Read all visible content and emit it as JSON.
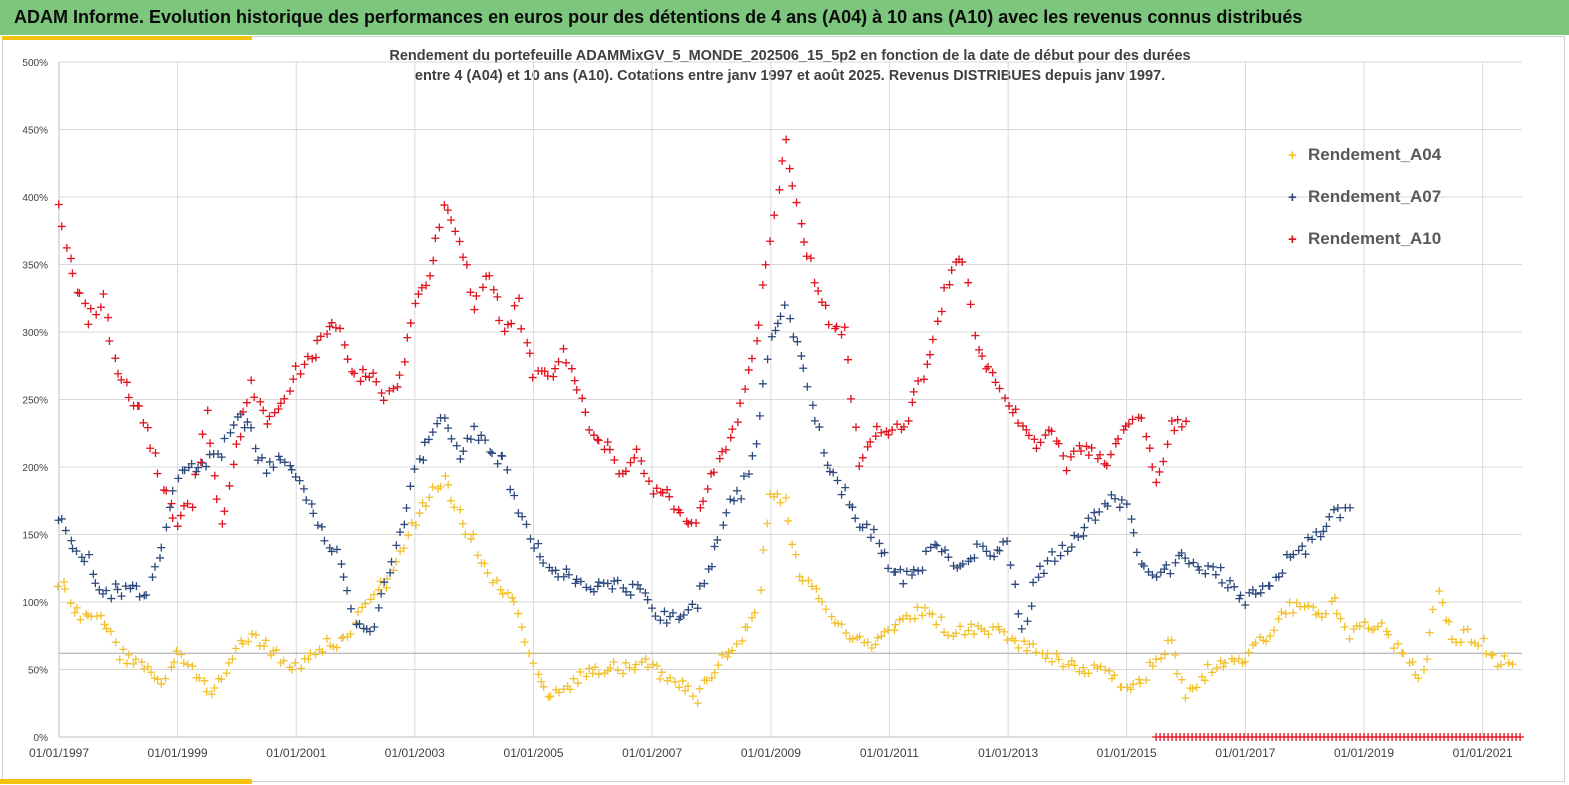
{
  "banner": {
    "title": "ADAM Informe. Evolution historique des performances en euros pour des détentions de 4 ans (A04) à 10 ans (A10) avec les revenus connus distribués"
  },
  "chart_data": {
    "type": "scatter",
    "title_line1": "Rendement du portefeuille ADAMMixGV_5_MONDE_202506_15_5p2 en fonction de la date de début pour des durées",
    "title_line2": "entre 4 (A04) et 10 ans (A10). Cotations entre janv 1997 et août 2025. Revenus DISTRIBUES depuis janv 1997.",
    "xlabel": "",
    "ylabel": "",
    "x_range": [
      "01/01/1997",
      "31/08/2021"
    ],
    "x_ticks": [
      "01/01/1997",
      "01/01/1999",
      "01/01/2001",
      "01/01/2003",
      "01/01/2005",
      "01/01/2007",
      "01/01/2009",
      "01/01/2011",
      "01/01/2013",
      "01/01/2015",
      "01/01/2017",
      "01/01/2019",
      "01/01/2021"
    ],
    "ylim": [
      0,
      500
    ],
    "y_ticks": [
      "0%",
      "50%",
      "100%",
      "150%",
      "200%",
      "250%",
      "300%",
      "350%",
      "400%",
      "450%",
      "500%"
    ],
    "grid": true,
    "reference_line": 62,
    "legend_placement": "top-right",
    "series": [
      {
        "name": "Rendement_A04",
        "color": "#f2c12e",
        "points": [
          [
            "01/01/1997",
            115
          ],
          [
            "01/04/1997",
            95
          ],
          [
            "01/07/1997",
            85
          ],
          [
            "01/10/1997",
            88
          ],
          [
            "01/01/1998",
            62
          ],
          [
            "01/04/1998",
            55
          ],
          [
            "01/07/1998",
            52
          ],
          [
            "01/10/1998",
            40
          ],
          [
            "01/01/1999",
            60
          ],
          [
            "01/04/1999",
            48
          ],
          [
            "01/07/1999",
            35
          ],
          [
            "01/10/1999",
            42
          ],
          [
            "01/01/2000",
            65
          ],
          [
            "01/04/2000",
            72
          ],
          [
            "01/07/2000",
            68
          ],
          [
            "01/10/2000",
            58
          ],
          [
            "01/01/2001",
            50
          ],
          [
            "01/04/2001",
            60
          ],
          [
            "01/07/2001",
            70
          ],
          [
            "01/10/2001",
            68
          ],
          [
            "01/01/2002",
            85
          ],
          [
            "01/04/2002",
            100
          ],
          [
            "01/07/2002",
            115
          ],
          [
            "01/10/2002",
            135
          ],
          [
            "01/01/2003",
            160
          ],
          [
            "01/04/2003",
            180
          ],
          [
            "01/07/2003",
            190
          ],
          [
            "01/10/2003",
            165
          ],
          [
            "01/01/2004",
            145
          ],
          [
            "01/04/2004",
            120
          ],
          [
            "01/07/2004",
            105
          ],
          [
            "01/10/2004",
            95
          ],
          [
            "01/01/2005",
            55
          ],
          [
            "01/04/2005",
            25
          ],
          [
            "01/07/2005",
            35
          ],
          [
            "01/10/2005",
            42
          ],
          [
            "01/01/2006",
            48
          ],
          [
            "01/04/2006",
            50
          ],
          [
            "01/07/2006",
            52
          ],
          [
            "01/10/2006",
            56
          ],
          [
            "01/01/2007",
            50
          ],
          [
            "01/04/2007",
            45
          ],
          [
            "01/07/2007",
            38
          ],
          [
            "01/10/2007",
            30
          ],
          [
            "01/01/2008",
            45
          ],
          [
            "01/04/2008",
            60
          ],
          [
            "01/07/2008",
            75
          ],
          [
            "01/10/2008",
            90
          ],
          [
            "01/01/2009",
            180
          ],
          [
            "01/04/2009",
            175
          ],
          [
            "01/07/2009",
            120
          ],
          [
            "01/10/2009",
            105
          ],
          [
            "01/01/2010",
            90
          ],
          [
            "01/04/2010",
            78
          ],
          [
            "01/07/2010",
            70
          ],
          [
            "01/10/2010",
            68
          ],
          [
            "01/01/2011",
            78
          ],
          [
            "01/04/2011",
            88
          ],
          [
            "01/07/2011",
            92
          ],
          [
            "01/10/2011",
            90
          ],
          [
            "01/01/2012",
            80
          ],
          [
            "01/04/2012",
            78
          ],
          [
            "01/07/2012",
            82
          ],
          [
            "01/10/2012",
            80
          ],
          [
            "01/01/2013",
            75
          ],
          [
            "01/04/2013",
            68
          ],
          [
            "01/07/2013",
            65
          ],
          [
            "01/10/2013",
            60
          ],
          [
            "01/01/2014",
            55
          ],
          [
            "01/04/2014",
            52
          ],
          [
            "01/07/2014",
            50
          ],
          [
            "01/10/2014",
            45
          ],
          [
            "01/01/2015",
            38
          ],
          [
            "01/04/2015",
            42
          ],
          [
            "01/07/2015",
            60
          ],
          [
            "01/10/2015",
            70
          ],
          [
            "01/01/2016",
            30
          ],
          [
            "01/04/2016",
            45
          ],
          [
            "01/07/2016",
            52
          ],
          [
            "01/10/2016",
            55
          ],
          [
            "01/01/2017",
            60
          ],
          [
            "01/04/2017",
            70
          ],
          [
            "01/07/2017",
            80
          ],
          [
            "01/10/2017",
            95
          ],
          [
            "01/01/2018",
            95
          ],
          [
            "01/04/2018",
            90
          ],
          [
            "01/07/2018",
            100
          ],
          [
            "01/10/2018",
            75
          ],
          [
            "01/01/2019",
            80
          ],
          [
            "01/04/2019",
            85
          ],
          [
            "01/07/2019",
            68
          ],
          [
            "01/10/2019",
            55
          ],
          [
            "01/01/2020",
            45
          ],
          [
            "01/04/2020",
            110
          ],
          [
            "01/07/2020",
            72
          ],
          [
            "01/10/2020",
            75
          ],
          [
            "01/01/2021",
            70
          ],
          [
            "01/04/2021",
            55
          ],
          [
            "01/07/2021",
            55
          ]
        ]
      },
      {
        "name": "Rendement_A07",
        "color": "#2e4a7d",
        "points": [
          [
            "01/01/1997",
            165
          ],
          [
            "01/04/1997",
            140
          ],
          [
            "01/07/1997",
            130
          ],
          [
            "01/10/1997",
            105
          ],
          [
            "01/01/1998",
            110
          ],
          [
            "01/04/1998",
            108
          ],
          [
            "01/07/1998",
            105
          ],
          [
            "01/10/1998",
            140
          ],
          [
            "01/01/1999",
            195
          ],
          [
            "01/04/1999",
            200
          ],
          [
            "01/07/1999",
            205
          ],
          [
            "01/10/1999",
            210
          ],
          [
            "01/01/2000",
            240
          ],
          [
            "01/04/2000",
            225
          ],
          [
            "01/07/2000",
            195
          ],
          [
            "01/10/2000",
            210
          ],
          [
            "01/01/2001",
            195
          ],
          [
            "01/04/2001",
            170
          ],
          [
            "01/07/2001",
            150
          ],
          [
            "01/10/2001",
            130
          ],
          [
            "01/01/2002",
            85
          ],
          [
            "01/04/2002",
            75
          ],
          [
            "01/07/2002",
            110
          ],
          [
            "01/10/2002",
            150
          ],
          [
            "01/01/2003",
            195
          ],
          [
            "01/04/2003",
            220
          ],
          [
            "01/07/2003",
            235
          ],
          [
            "01/10/2003",
            210
          ],
          [
            "01/01/2004",
            230
          ],
          [
            "01/04/2004",
            210
          ],
          [
            "01/07/2004",
            205
          ],
          [
            "01/10/2004",
            170
          ],
          [
            "01/01/2005",
            145
          ],
          [
            "01/04/2005",
            130
          ],
          [
            "01/07/2005",
            120
          ],
          [
            "01/10/2005",
            118
          ],
          [
            "01/01/2006",
            112
          ],
          [
            "01/04/2006",
            110
          ],
          [
            "01/07/2006",
            112
          ],
          [
            "01/10/2006",
            108
          ],
          [
            "01/01/2007",
            95
          ],
          [
            "01/04/2007",
            88
          ],
          [
            "01/07/2007",
            92
          ],
          [
            "01/10/2007",
            100
          ],
          [
            "01/01/2008",
            130
          ],
          [
            "01/04/2008",
            170
          ],
          [
            "01/07/2008",
            180
          ],
          [
            "01/10/2008",
            220
          ],
          [
            "01/01/2009",
            300
          ],
          [
            "01/04/2009",
            320
          ],
          [
            "01/07/2009",
            280
          ],
          [
            "01/10/2009",
            235
          ],
          [
            "01/01/2010",
            195
          ],
          [
            "01/04/2010",
            180
          ],
          [
            "01/07/2010",
            160
          ],
          [
            "01/10/2010",
            150
          ],
          [
            "01/01/2011",
            130
          ],
          [
            "01/04/2011",
            118
          ],
          [
            "01/07/2011",
            120
          ],
          [
            "01/10/2011",
            145
          ],
          [
            "01/01/2012",
            130
          ],
          [
            "01/04/2012",
            125
          ],
          [
            "01/07/2012",
            140
          ],
          [
            "01/10/2012",
            135
          ],
          [
            "01/01/2013",
            145
          ],
          [
            "01/04/2013",
            80
          ],
          [
            "01/07/2013",
            120
          ],
          [
            "01/10/2013",
            132
          ],
          [
            "01/01/2014",
            140
          ],
          [
            "01/04/2014",
            150
          ],
          [
            "01/07/2014",
            165
          ],
          [
            "01/10/2014",
            178
          ],
          [
            "01/01/2015",
            170
          ],
          [
            "01/04/2015",
            130
          ],
          [
            "01/07/2015",
            120
          ],
          [
            "01/10/2015",
            125
          ],
          [
            "01/01/2016",
            135
          ],
          [
            "01/04/2016",
            120
          ],
          [
            "01/07/2016",
            125
          ],
          [
            "01/10/2016",
            112
          ],
          [
            "01/01/2017",
            100
          ],
          [
            "01/04/2017",
            108
          ],
          [
            "01/07/2017",
            115
          ],
          [
            "01/10/2017",
            135
          ],
          [
            "01/01/2018",
            140
          ],
          [
            "01/04/2018",
            150
          ],
          [
            "01/07/2018",
            165
          ],
          [
            "01/10/2018",
            170
          ]
        ]
      },
      {
        "name": "Rendement_A10",
        "color": "#e0131e",
        "points": [
          [
            "01/01/1997",
            395
          ],
          [
            "01/04/1997",
            340
          ],
          [
            "01/07/1997",
            310
          ],
          [
            "01/10/1997",
            325
          ],
          [
            "01/01/1998",
            270
          ],
          [
            "01/04/1998",
            250
          ],
          [
            "01/07/1998",
            230
          ],
          [
            "01/10/1998",
            185
          ],
          [
            "01/01/1999",
            160
          ],
          [
            "01/04/1999",
            175
          ],
          [
            "01/07/1999",
            240
          ],
          [
            "01/10/1999",
            155
          ],
          [
            "01/01/2000",
            215
          ],
          [
            "01/04/2000",
            260
          ],
          [
            "01/07/2000",
            235
          ],
          [
            "01/10/2000",
            245
          ],
          [
            "01/01/2001",
            270
          ],
          [
            "01/04/2001",
            280
          ],
          [
            "01/07/2001",
            300
          ],
          [
            "01/10/2001",
            305
          ],
          [
            "01/01/2002",
            265
          ],
          [
            "01/04/2002",
            270
          ],
          [
            "01/07/2002",
            250
          ],
          [
            "01/10/2002",
            265
          ],
          [
            "01/01/2003",
            320
          ],
          [
            "01/04/2003",
            340
          ],
          [
            "01/07/2003",
            395
          ],
          [
            "01/10/2003",
            370
          ],
          [
            "01/01/2004",
            320
          ],
          [
            "01/04/2004",
            345
          ],
          [
            "01/07/2004",
            300
          ],
          [
            "01/10/2004",
            320
          ],
          [
            "01/01/2005",
            270
          ],
          [
            "01/04/2005",
            265
          ],
          [
            "01/07/2005",
            285
          ],
          [
            "01/10/2005",
            255
          ],
          [
            "01/01/2006",
            225
          ],
          [
            "01/04/2006",
            215
          ],
          [
            "01/07/2006",
            195
          ],
          [
            "01/10/2006",
            215
          ],
          [
            "01/01/2007",
            185
          ],
          [
            "01/04/2007",
            180
          ],
          [
            "01/07/2007",
            165
          ],
          [
            "01/10/2007",
            160
          ],
          [
            "01/01/2008",
            190
          ],
          [
            "01/04/2008",
            215
          ],
          [
            "01/07/2008",
            245
          ],
          [
            "01/10/2008",
            290
          ],
          [
            "01/01/2009",
            370
          ],
          [
            "01/04/2009",
            440
          ],
          [
            "01/07/2009",
            380
          ],
          [
            "01/10/2009",
            340
          ],
          [
            "01/01/2010",
            310
          ],
          [
            "01/04/2010",
            300
          ],
          [
            "01/07/2010",
            205
          ],
          [
            "01/10/2010",
            225
          ],
          [
            "01/01/2011",
            225
          ],
          [
            "01/04/2011",
            230
          ],
          [
            "01/07/2011",
            260
          ],
          [
            "01/10/2011",
            295
          ],
          [
            "01/01/2012",
            340
          ],
          [
            "01/04/2012",
            355
          ],
          [
            "01/07/2012",
            285
          ],
          [
            "01/10/2012",
            265
          ],
          [
            "01/01/2013",
            245
          ],
          [
            "01/04/2013",
            235
          ],
          [
            "01/07/2013",
            215
          ],
          [
            "01/10/2013",
            230
          ],
          [
            "01/01/2014",
            200
          ],
          [
            "01/04/2014",
            215
          ],
          [
            "01/07/2014",
            210
          ],
          [
            "01/10/2014",
            205
          ],
          [
            "01/01/2015",
            235
          ],
          [
            "01/04/2015",
            240
          ],
          [
            "01/07/2015",
            185
          ],
          [
            "01/10/2015",
            230
          ],
          [
            "01/01/2016",
            235
          ]
        ]
      }
    ],
    "zero_markers": {
      "from": "01/07/2015",
      "to": "31/08/2021",
      "value": 0,
      "color": "#e0131e"
    }
  },
  "legend": [
    {
      "label": "Rendement_A04",
      "color": "#f2c12e"
    },
    {
      "label": "Rendement_A07",
      "color": "#2e4a7d"
    },
    {
      "label": "Rendement_A10",
      "color": "#e0131e"
    }
  ]
}
